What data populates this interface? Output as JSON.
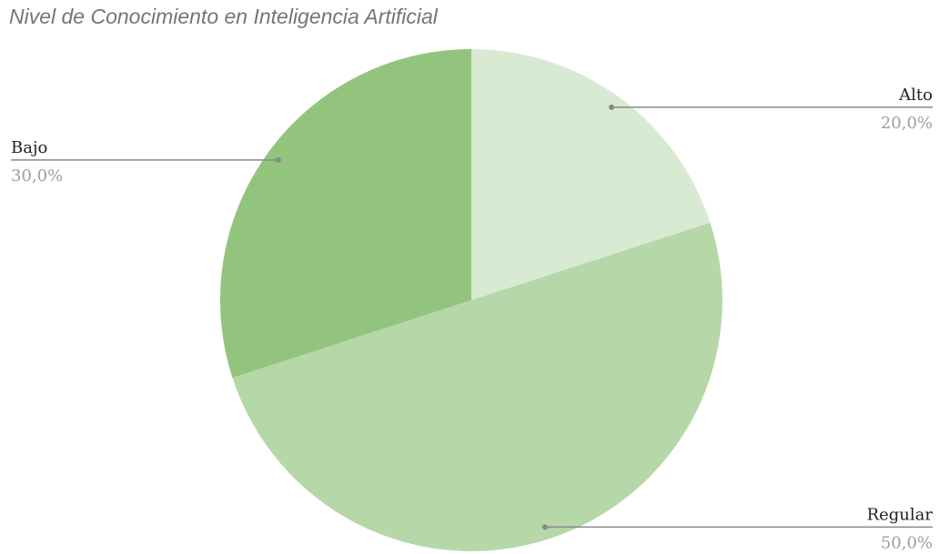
{
  "chart_data": {
    "type": "pie",
    "title": "Nivel de Conocimiento en Inteligencia Artificial",
    "categories": [
      "Alto",
      "Regular",
      "Bajo"
    ],
    "values": [
      20,
      50,
      30
    ],
    "value_labels": [
      "20,0%",
      "50,0%",
      "30,0%"
    ],
    "colors": [
      "#d9ead3",
      "#b6d7a8",
      "#93c47d"
    ]
  }
}
